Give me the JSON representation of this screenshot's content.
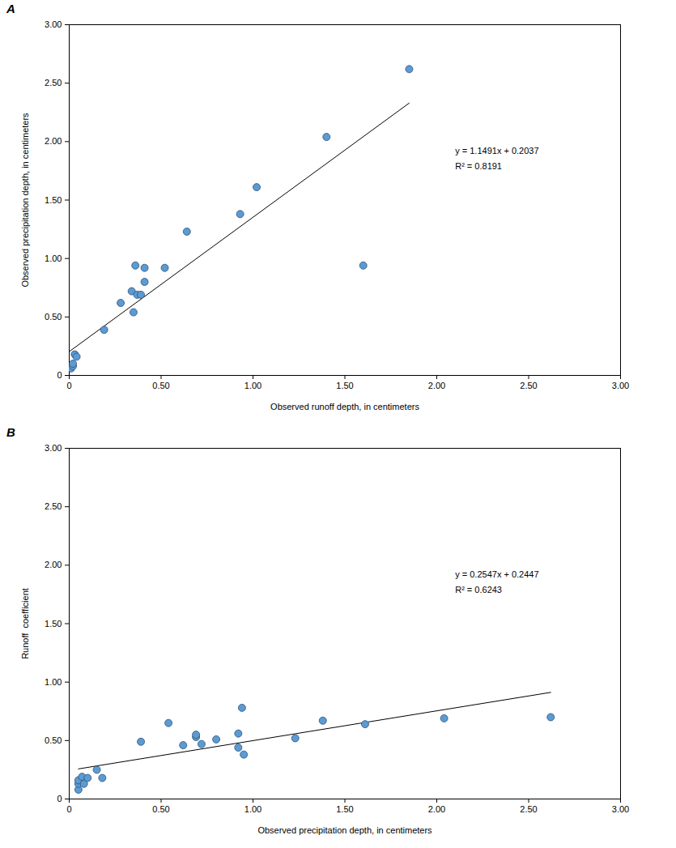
{
  "chart_data": [
    {
      "type": "scatter",
      "title": "A",
      "x_label": "Observed runoff depth, in centimeters",
      "y_label": "Observed precipitation depth, in centimeters",
      "color": "#5b9bd5",
      "marker": "circle",
      "grid": false,
      "x": [
        0.01,
        0.02,
        0.02,
        0.03,
        0.04,
        0.19,
        0.28,
        0.34,
        0.36,
        0.35,
        0.37,
        0.39,
        0.41,
        0.41,
        0.52,
        0.64,
        0.93,
        1.02,
        1.4,
        1.6,
        1.85
      ],
      "values": [
        0.06,
        0.08,
        0.1,
        0.18,
        0.16,
        0.39,
        0.62,
        0.72,
        0.94,
        0.54,
        0.69,
        0.69,
        0.8,
        0.92,
        0.92,
        1.23,
        1.38,
        1.61,
        2.04,
        0.94,
        2.62
      ],
      "trendline": {
        "slope": 1.1491,
        "intercept": 0.2037,
        "x": [
          0,
          1.85
        ]
      },
      "annotations": [
        "y = 1.1491x + 0.2037",
        "R² = 0.8191"
      ],
      "xlim": [
        0,
        3
      ],
      "ylim": [
        0,
        3
      ],
      "xticks": [
        0,
        {
          "value": 0.5,
          "label": "0.50"
        },
        {
          "value": 1,
          "label": "1.00"
        },
        {
          "value": 1.5,
          "label": "1.50"
        },
        {
          "value": 2,
          "label": "2.00"
        },
        {
          "value": 2.5,
          "label": "2.50"
        },
        {
          "value": 3,
          "label": "3.00"
        }
      ],
      "yticks": [
        0,
        {
          "value": 0.5,
          "label": "0.50"
        },
        {
          "value": 1,
          "label": "1.00"
        },
        {
          "value": 1.5,
          "label": "1.50"
        },
        {
          "value": 2,
          "label": "2.00"
        },
        {
          "value": 2.5,
          "label": "2.50"
        },
        {
          "value": 3,
          "label": "3.00"
        }
      ]
    },
    {
      "type": "scatter",
      "title": "B",
      "x_label": "Observed precipitation depth, in centimeters",
      "y_label": "Runoff  coefficient",
      "color": "#5b9bd5",
      "marker": "circle",
      "grid": false,
      "x": [
        0.05,
        0.05,
        0.05,
        0.08,
        0.07,
        0.1,
        0.15,
        0.18,
        0.39,
        0.54,
        0.62,
        0.69,
        0.69,
        0.72,
        0.8,
        0.92,
        0.92,
        0.94,
        0.95,
        1.23,
        1.38,
        1.61,
        2.04,
        2.62
      ],
      "values": [
        0.08,
        0.13,
        0.16,
        0.13,
        0.19,
        0.18,
        0.25,
        0.18,
        0.49,
        0.65,
        0.46,
        0.53,
        0.55,
        0.47,
        0.51,
        0.44,
        0.56,
        0.78,
        0.38,
        0.52,
        0.67,
        0.64,
        0.69,
        0.7
      ],
      "trendline": {
        "slope": 0.2547,
        "intercept": 0.2447,
        "x": [
          0.05,
          2.62
        ]
      },
      "annotations": [
        "y = 0.2547x + 0.2447",
        "R² = 0.6243"
      ],
      "xlim": [
        0,
        3
      ],
      "ylim": [
        0,
        3
      ],
      "xticks": [
        0,
        {
          "value": 0.5,
          "label": "0.50"
        },
        {
          "value": 1,
          "label": "1.00"
        },
        {
          "value": 1.5,
          "label": "1.50"
        },
        {
          "value": 2,
          "label": "2.00"
        },
        {
          "value": 2.5,
          "label": "2.50"
        },
        {
          "value": 3,
          "label": "3.00"
        }
      ],
      "yticks": [
        0,
        {
          "value": 0.5,
          "label": "0.50"
        },
        {
          "value": 1,
          "label": "1.00"
        },
        {
          "value": 1.5,
          "label": "1.50"
        },
        {
          "value": 2,
          "label": "2.00"
        },
        {
          "value": 2.5,
          "label": "2.50"
        },
        {
          "value": 3,
          "label": "3.00"
        }
      ]
    }
  ]
}
